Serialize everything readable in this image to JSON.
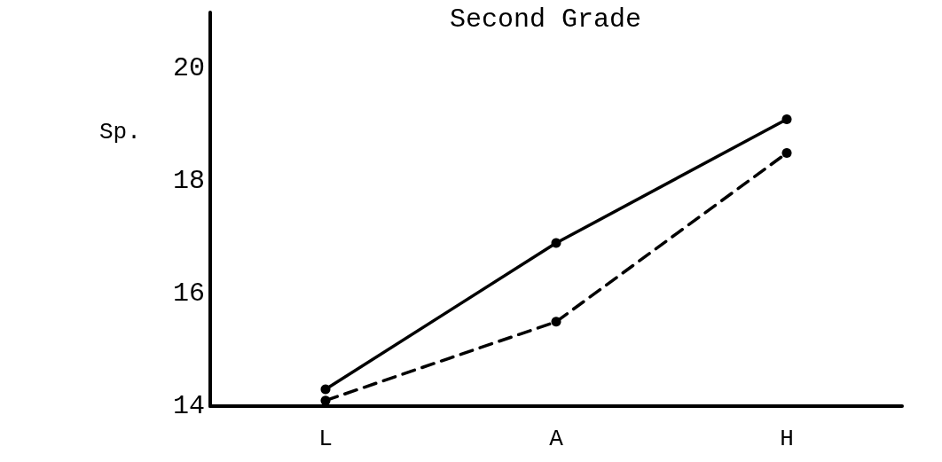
{
  "chart_data": {
    "type": "line",
    "title": "Second Grade",
    "ylabel": "Sp.",
    "categories": [
      "L",
      "A",
      "H"
    ],
    "series": [
      {
        "color": "#000000",
        "values": [
          14.3,
          16.9,
          19.1
        ],
        "line_style": "solid"
      },
      {
        "color": "#000000",
        "values": [
          14.1,
          15.5,
          18.5
        ],
        "line_style": "dashed"
      }
    ],
    "ylim": [
      14,
      21
    ],
    "yticks": [
      14,
      16,
      18,
      20
    ],
    "marker": "circle"
  }
}
